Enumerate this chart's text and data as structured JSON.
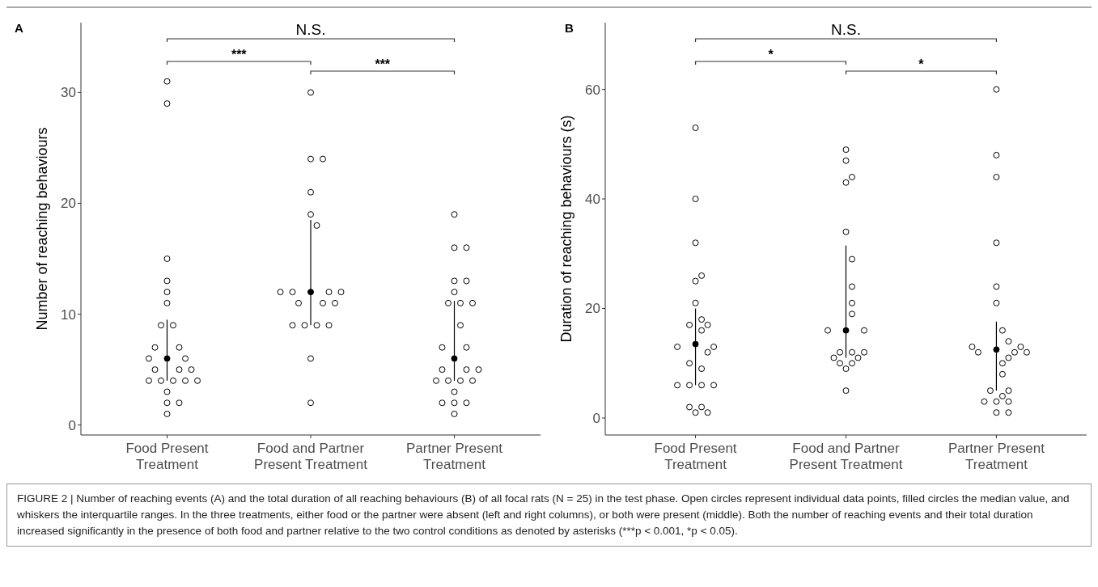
{
  "chart_data": [
    {
      "type": "scatter",
      "title": "A",
      "ylabel": "Number of reaching behaviours",
      "ylim": [
        -0.9,
        36.3
      ],
      "categories": [
        "Food Present Treatment",
        "Food and Partner Present Treatment",
        "Partner Present Treatment"
      ],
      "yticks": [
        0,
        10,
        20,
        30
      ],
      "grid": false,
      "marker": "circle",
      "series": [
        {
          "color": "#000000",
          "values": [
            6,
            12,
            6
          ],
          "errors": [
            [
              4,
              9.5
            ],
            [
              9,
              18.5
            ],
            [
              4,
              11.2
            ]
          ]
        },
        {
          "color": "#000000",
          "x": [
            "Food Present Treatment",
            "Food Present Treatment",
            "Food Present Treatment",
            "Food Present Treatment",
            "Food Present Treatment",
            "Food Present Treatment",
            "Food Present Treatment",
            "Food Present Treatment",
            "Food Present Treatment",
            "Food Present Treatment",
            "Food Present Treatment",
            "Food Present Treatment",
            "Food Present Treatment",
            "Food Present Treatment",
            "Food Present Treatment",
            "Food Present Treatment",
            "Food Present Treatment",
            "Food Present Treatment",
            "Food Present Treatment",
            "Food Present Treatment",
            "Food Present Treatment",
            "Food Present Treatment",
            "Food Present Treatment",
            "Food Present Treatment"
          ],
          "values": [
            29,
            31,
            12,
            13,
            11,
            9,
            15,
            9,
            7,
            7,
            4,
            4,
            4,
            4,
            4,
            6,
            5,
            5,
            6,
            5,
            3,
            2,
            1,
            2
          ]
        },
        {
          "color": "#000000",
          "x": [
            "Food and Partner Present Treatment",
            "Food and Partner Present Treatment",
            "Food and Partner Present Treatment",
            "Food and Partner Present Treatment",
            "Food and Partner Present Treatment",
            "Food and Partner Present Treatment",
            "Food and Partner Present Treatment",
            "Food and Partner Present Treatment",
            "Food and Partner Present Treatment",
            "Food and Partner Present Treatment",
            "Food and Partner Present Treatment",
            "Food and Partner Present Treatment",
            "Food and Partner Present Treatment",
            "Food and Partner Present Treatment",
            "Food and Partner Present Treatment",
            "Food and Partner Present Treatment",
            "Food and Partner Present Treatment",
            "Food and Partner Present Treatment",
            "Food and Partner Present Treatment"
          ],
          "values": [
            24,
            21,
            19,
            18,
            12,
            12,
            9,
            9,
            9,
            11,
            11,
            11,
            30,
            24,
            12,
            9,
            2,
            6,
            12
          ]
        },
        {
          "color": "#000000",
          "x": [
            "Partner Present Treatment",
            "Partner Present Treatment",
            "Partner Present Treatment",
            "Partner Present Treatment",
            "Partner Present Treatment",
            "Partner Present Treatment",
            "Partner Present Treatment",
            "Partner Present Treatment",
            "Partner Present Treatment",
            "Partner Present Treatment",
            "Partner Present Treatment",
            "Partner Present Treatment",
            "Partner Present Treatment",
            "Partner Present Treatment",
            "Partner Present Treatment",
            "Partner Present Treatment",
            "Partner Present Treatment",
            "Partner Present Treatment",
            "Partner Present Treatment",
            "Partner Present Treatment",
            "Partner Present Treatment",
            "Partner Present Treatment",
            "Partner Present Treatment",
            "Partner Present Treatment"
          ],
          "values": [
            19,
            16,
            16,
            13,
            13,
            12,
            11,
            11,
            11,
            9,
            7,
            7,
            5,
            2,
            2,
            5,
            5,
            4,
            4,
            4,
            3,
            2,
            1,
            4
          ]
        }
      ],
      "annotations": [
        "N.S.",
        "***",
        "***",
        "FIGURE 2 | Number of reaching events (A) and the total duration of all reaching behaviours (B) of all focal rats (N = 25) in the test phase. Open circles represent individual data points, filled circles the median value, and whiskers the interquartile ranges. In the three treatments, either food or the partner were absent (left and right columns), or both were present (middle). Both the number of reaching events and their total duration increased significantly in the presence of both food and partner relative to the two control conditions as denoted by asterisks (***p < 0.001, *p < 0.05)."
      ]
    },
    {
      "type": "scatter",
      "title": "B",
      "ylabel": "Duration of reaching behaviours (s)",
      "ylim": [
        -3.1,
        72.2
      ],
      "categories": [
        "Food Present Treatment",
        "Food and Partner Present Treatment",
        "Partner Present Treatment"
      ],
      "yticks": [
        0,
        20,
        40,
        60
      ],
      "grid": false,
      "marker": "circle",
      "series": [
        {
          "color": "#000000",
          "values": [
            13.5,
            16,
            12.5
          ],
          "errors": [
            [
              6,
              20
            ],
            [
              11,
              31.5
            ],
            [
              5,
              17.6
            ]
          ]
        },
        {
          "color": "#000000",
          "x": [
            "Food Present Treatment",
            "Food Present Treatment",
            "Food Present Treatment",
            "Food Present Treatment",
            "Food Present Treatment",
            "Food Present Treatment",
            "Food Present Treatment",
            "Food Present Treatment",
            "Food Present Treatment",
            "Food Present Treatment",
            "Food Present Treatment",
            "Food Present Treatment",
            "Food Present Treatment",
            "Food Present Treatment",
            "Food Present Treatment",
            "Food Present Treatment",
            "Food Present Treatment",
            "Food Present Treatment",
            "Food Present Treatment",
            "Food Present Treatment",
            "Food Present Treatment",
            "Food Present Treatment",
            "Food Present Treatment"
          ],
          "values": [
            53,
            40,
            32,
            26,
            25,
            21,
            17,
            18,
            17,
            16,
            13,
            13,
            12,
            10,
            9,
            6,
            6,
            6,
            6,
            2,
            1,
            1,
            2
          ]
        },
        {
          "color": "#000000",
          "x": [
            "Food and Partner Present Treatment",
            "Food and Partner Present Treatment",
            "Food and Partner Present Treatment",
            "Food and Partner Present Treatment",
            "Food and Partner Present Treatment",
            "Food and Partner Present Treatment",
            "Food and Partner Present Treatment",
            "Food and Partner Present Treatment",
            "Food and Partner Present Treatment",
            "Food and Partner Present Treatment",
            "Food and Partner Present Treatment",
            "Food and Partner Present Treatment",
            "Food and Partner Present Treatment",
            "Food and Partner Present Treatment",
            "Food and Partner Present Treatment",
            "Food and Partner Present Treatment",
            "Food and Partner Present Treatment",
            "Food and Partner Present Treatment",
            "Food and Partner Present Treatment",
            "Food and Partner Present Treatment"
          ],
          "values": [
            49,
            44,
            29,
            21,
            47,
            43,
            34,
            24,
            19,
            16,
            16,
            12,
            12,
            11,
            11,
            12,
            9,
            10,
            10,
            5
          ]
        },
        {
          "color": "#000000",
          "x": [
            "Partner Present Treatment",
            "Partner Present Treatment",
            "Partner Present Treatment",
            "Partner Present Treatment",
            "Partner Present Treatment",
            "Partner Present Treatment",
            "Partner Present Treatment",
            "Partner Present Treatment",
            "Partner Present Treatment",
            "Partner Present Treatment",
            "Partner Present Treatment",
            "Partner Present Treatment",
            "Partner Present Treatment",
            "Partner Present Treatment",
            "Partner Present Treatment",
            "Partner Present Treatment",
            "Partner Present Treatment",
            "Partner Present Treatment",
            "Partner Present Treatment",
            "Partner Present Treatment",
            "Partner Present Treatment",
            "Partner Present Treatment",
            "Partner Present Treatment",
            "Partner Present Treatment"
          ],
          "values": [
            60,
            48,
            44,
            32,
            24,
            21,
            16,
            13,
            14,
            13,
            12,
            12,
            12,
            11,
            10,
            8,
            5,
            5,
            3,
            3,
            4,
            1,
            1,
            3
          ]
        }
      ],
      "annotations": [
        "N.S.",
        "*",
        "*"
      ]
    }
  ]
}
